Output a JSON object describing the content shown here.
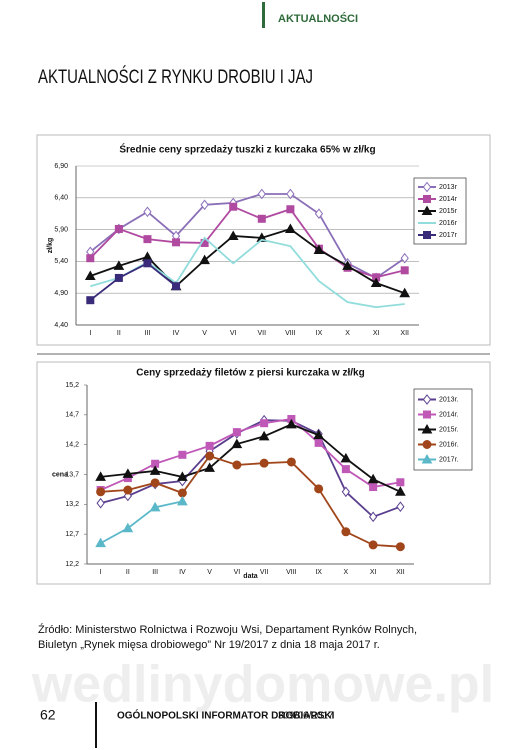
{
  "header": {
    "section": "AKTUALNOŚCI",
    "title": "AKTUALNOŚCI Z RYNKU DROBIU I JAJ"
  },
  "chart_data": [
    {
      "type": "line",
      "title": "Średnie ceny sprzedaży tuszki z kurczaka 65% w zł/kg",
      "y_label": "zł/kg",
      "categories": [
        "I",
        "II",
        "III",
        "IV",
        "V",
        "VI",
        "VII",
        "VIII",
        "IX",
        "X",
        "XI",
        "XII"
      ],
      "ylim": [
        4.4,
        6.9
      ],
      "yticks": [
        {
          "value": 4.4,
          "label": "4,40"
        },
        {
          "value": 4.9,
          "label": "4,90"
        },
        {
          "value": 5.4,
          "label": "5,40"
        },
        {
          "value": 5.9,
          "label": "5,90"
        },
        {
          "value": 6.4,
          "label": "6,40"
        },
        {
          "value": 6.9,
          "label": "6,90"
        }
      ],
      "grid": true,
      "legend": "right",
      "series": [
        {
          "name": "2013r",
          "color": "#8a6fb8",
          "marker": "diamond",
          "values": [
            5.55,
            5.91,
            6.18,
            5.8,
            6.29,
            6.32,
            6.46,
            6.46,
            6.15,
            5.37,
            5.14,
            5.45
          ]
        },
        {
          "name": "2014r",
          "color": "#b04aa0",
          "marker": "square",
          "values": [
            5.45,
            5.91,
            5.75,
            5.7,
            5.69,
            6.26,
            6.07,
            6.22,
            5.6,
            5.3,
            5.15,
            5.26
          ]
        },
        {
          "name": "2015r",
          "color": "#111111",
          "marker": "triangle",
          "values": [
            5.17,
            5.33,
            5.47,
            5.01,
            5.42,
            5.8,
            5.77,
            5.91,
            5.58,
            5.33,
            5.06,
            4.9
          ]
        },
        {
          "name": "2016r",
          "color": "#92dcdc",
          "values": [
            5.01,
            5.14,
            5.39,
            5.06,
            5.77,
            5.37,
            5.74,
            5.64,
            5.09,
            4.76,
            4.68,
            4.73
          ]
        },
        {
          "name": "2017r",
          "color": "#3a2a7a",
          "marker": "square",
          "values": [
            4.79,
            5.14,
            5.37,
            5.01,
            null,
            null,
            null,
            null,
            null,
            null,
            null,
            null
          ]
        }
      ]
    },
    {
      "type": "line",
      "title": "Ceny sprzedaży filetów z piersi kurczaka w zł/kg",
      "y_label": "cena",
      "x_label": "data",
      "categories": [
        "I",
        "II",
        "III",
        "IV",
        "V",
        "VI",
        "VII",
        "VIII",
        "IX",
        "X",
        "XI",
        "XII"
      ],
      "ylim": [
        12.2,
        15.2
      ],
      "yticks": [
        {
          "value": 12.2,
          "label": "12,2"
        },
        {
          "value": 12.7,
          "label": "12,7"
        },
        {
          "value": 13.2,
          "label": "13,2"
        },
        {
          "value": 13.7,
          "label": "13,7"
        },
        {
          "value": 14.2,
          "label": "14,2"
        },
        {
          "value": 14.7,
          "label": "14,7"
        },
        {
          "value": 15.2,
          "label": "15,2"
        }
      ],
      "grid": false,
      "legend": "right",
      "series": [
        {
          "name": "2013r.",
          "color": "#5b3f8f",
          "marker": "diamond",
          "values": [
            13.22,
            13.34,
            13.54,
            13.59,
            14.09,
            14.39,
            14.61,
            14.6,
            14.38,
            13.41,
            12.99,
            13.16
          ]
        },
        {
          "name": "2014r.",
          "color": "#c058b8",
          "marker": "square",
          "values": [
            13.44,
            13.64,
            13.88,
            14.03,
            14.18,
            14.41,
            14.56,
            14.63,
            14.23,
            13.79,
            13.49,
            13.57
          ]
        },
        {
          "name": "2015r.",
          "color": "#111111",
          "marker": "triangle",
          "values": [
            13.66,
            13.71,
            13.76,
            13.66,
            13.81,
            14.21,
            14.34,
            14.54,
            14.36,
            13.97,
            13.62,
            13.41
          ]
        },
        {
          "name": "2016r.",
          "color": "#a0461a",
          "marker": "circle",
          "values": [
            13.41,
            13.44,
            13.56,
            13.39,
            14.01,
            13.86,
            13.89,
            13.91,
            13.46,
            12.74,
            12.52,
            12.49
          ]
        },
        {
          "name": "2017r.",
          "color": "#5bb8c8",
          "marker": "triangle",
          "values": [
            12.55,
            12.8,
            13.15,
            13.25,
            null,
            null,
            null,
            null,
            null,
            null,
            null,
            null
          ]
        }
      ]
    }
  ],
  "source": [
    "Źródło: Ministerstwo Rolnictwa i Rozwoju Wsi, Departament Rynków Rolnych,",
    "Biuletyn „Rynek mięsa drobiowego” Nr 19/2017 z dnia 18 maja 2017 r."
  ],
  "watermark": "wedlinydomowe.pl",
  "footer": {
    "page": "62",
    "publication": "OGÓLNOPOLSKI INFORMATOR DROBIARSKI",
    "issue": "309/06/2017"
  }
}
